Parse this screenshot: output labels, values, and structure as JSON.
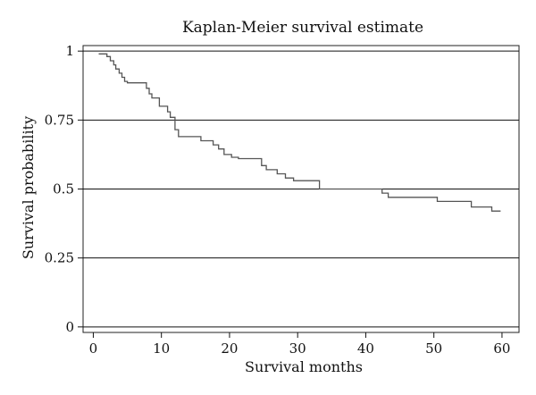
{
  "chart_data": {
    "type": "line",
    "title": "Kaplan-Meier survival estimate",
    "xlabel": "Survival months",
    "ylabel": "Survival probability",
    "xlim": [
      -1.5,
      62.5
    ],
    "ylim": [
      -0.02,
      1.02
    ],
    "x_ticks": [
      0,
      10,
      20,
      30,
      40,
      50,
      60
    ],
    "x_tick_labels": [
      "0",
      "10",
      "20",
      "30",
      "40",
      "50",
      "60"
    ],
    "y_ticks": [
      0,
      0.25,
      0.5,
      0.75,
      1
    ],
    "y_tick_labels": [
      "0",
      "0.25",
      "0.5",
      "0.75",
      "1"
    ],
    "grid": "horizontal",
    "series": [
      {
        "x": [
          0.8,
          2,
          2.5,
          3,
          3.3,
          3.8,
          4.2,
          4.6,
          5,
          7.8,
          8.2,
          8.6,
          9.7,
          10.9,
          11.3,
          12,
          12.5,
          15.8,
          17.6,
          18.4,
          19.2,
          20.3,
          21.3,
          24.7,
          25.4,
          27,
          28.2,
          29.4,
          33.2,
          42.4,
          43.3,
          50.5,
          55.5,
          58.5,
          59.8
        ],
        "y": [
          0.99,
          0.98,
          0.965,
          0.95,
          0.935,
          0.92,
          0.905,
          0.89,
          0.885,
          0.865,
          0.845,
          0.83,
          0.8,
          0.78,
          0.76,
          0.715,
          0.69,
          0.675,
          0.66,
          0.645,
          0.625,
          0.615,
          0.61,
          0.585,
          0.57,
          0.555,
          0.54,
          0.53,
          0.5,
          0.485,
          0.47,
          0.455,
          0.435,
          0.42,
          0.42
        ]
      }
    ]
  }
}
